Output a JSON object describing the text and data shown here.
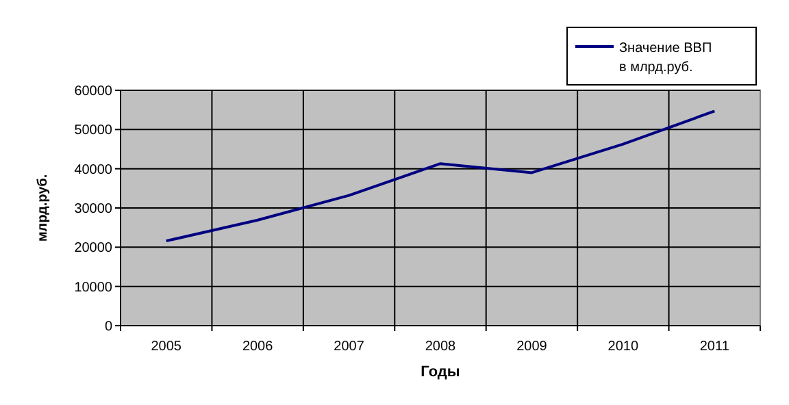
{
  "chart_data": {
    "type": "line",
    "xlabel": "Годы",
    "ylabel": "млрд.руб.",
    "categories": [
      "2005",
      "2006",
      "2007",
      "2008",
      "2009",
      "2010",
      "2011"
    ],
    "series": [
      {
        "name": "Значение ВВП в млрд.руб.",
        "color": "#000080",
        "values": [
          21600,
          26900,
          33200,
          41300,
          39000,
          46300,
          54700
        ]
      }
    ],
    "ylim": [
      0,
      60000
    ],
    "yticks": [
      0,
      10000,
      20000,
      30000,
      40000,
      50000,
      60000
    ],
    "grid": true,
    "legend": "top right",
    "marker": "none",
    "line_style": "solid"
  }
}
